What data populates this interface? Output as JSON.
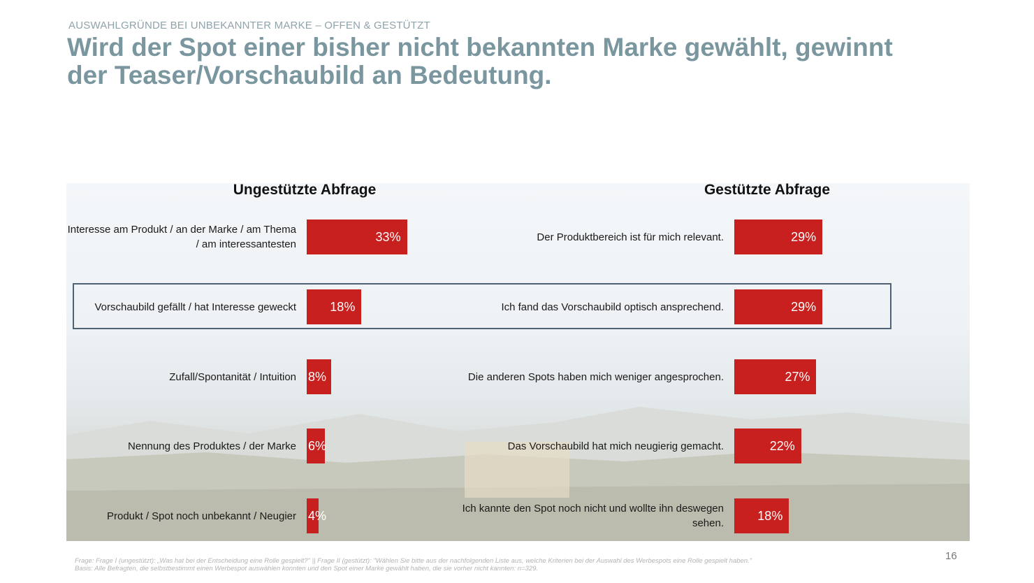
{
  "header": {
    "kicker": "AUSWAHLGRÜNDE BEI UNBEKANNTER MARKE – OFFEN & GESTÜTZT",
    "title": "Wird der Spot einer bisher nicht bekannten Marke gewählt, gewinnt der Teaser/Vorschaubild an Bedeutung."
  },
  "colors": {
    "bar": "#c8201e",
    "title": "#7a969f",
    "highlight_border": "#4f6275"
  },
  "chart_data": [
    {
      "type": "bar",
      "orientation": "horizontal",
      "title": "Ungestützte Abfrage",
      "categories": [
        "Interesse am Produkt / an der Marke / am Thema / am interessantesten",
        "Vorschaubild gefällt / hat Interesse geweckt",
        "Zufall/Spontanität / Intuition",
        "Nennung des Produktes / der Marke",
        "Produkt / Spot noch unbekannt / Neugier"
      ],
      "values": [
        33,
        18,
        8,
        6,
        4
      ],
      "value_labels": [
        "33%",
        "18%",
        "8%",
        "6%",
        "4%"
      ],
      "unit": "%"
    },
    {
      "type": "bar",
      "orientation": "horizontal",
      "title": "Gestützte Abfrage",
      "categories": [
        "Der Produktbereich ist für mich relevant.",
        "Ich fand das Vorschaubild optisch ansprechend.",
        "Die anderen Spots haben mich weniger angesprochen.",
        "Das Vorschaubild hat mich neugierig gemacht.",
        "Ich kannte den Spot noch nicht und wollte ihn deswegen sehen."
      ],
      "values": [
        29,
        29,
        27,
        22,
        18
      ],
      "value_labels": [
        "29%",
        "29%",
        "27%",
        "22%",
        "18%"
      ],
      "unit": "%"
    }
  ],
  "highlight": {
    "row": 1
  },
  "footer": {
    "question": "Frage: Frage I (ungestützt): „Was hat bei der Entscheidung eine Rolle gespielt?\" || Frage II (gestützt): \"Wählen Sie bitte aus der nachfolgenden Liste aus, welche Kriterien bei der Auswahl des Werbespots eine Rolle gespielt haben.\"",
    "basis": "Basis: Alle Befragten, die selbstbestimmt einen Werbespot auswählen konnten und den Spot einer Marke gewählt haben, die sie vorher nicht kannten: n=329.",
    "page_number": "16"
  }
}
